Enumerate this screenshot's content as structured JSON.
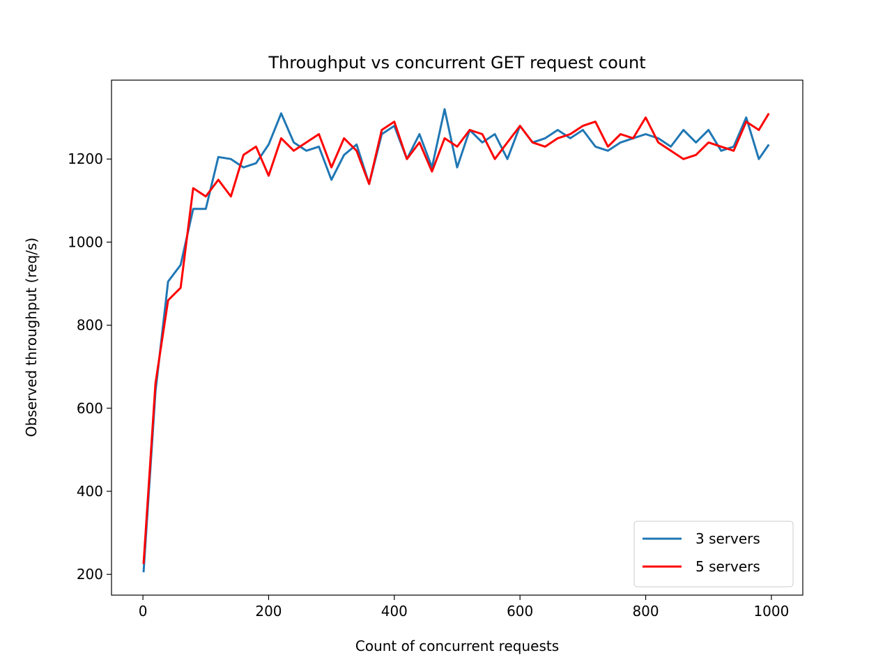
{
  "chart_data": {
    "type": "line",
    "title": "Throughput vs concurrent GET request count",
    "xlabel": "Count of concurrent requests",
    "ylabel": "Observed throughput (req/s)",
    "xlim": [
      -50,
      1050
    ],
    "ylim": [
      150,
      1390
    ],
    "xticks": [
      0,
      200,
      400,
      600,
      800,
      1000
    ],
    "yticks": [
      200,
      400,
      600,
      800,
      1000,
      1200
    ],
    "legend_position": "lower right",
    "grid": false,
    "series": [
      {
        "name": "3 servers",
        "color": "#1f77b4",
        "x": [
          1,
          20,
          40,
          60,
          80,
          100,
          120,
          140,
          160,
          180,
          200,
          220,
          240,
          260,
          280,
          300,
          320,
          340,
          360,
          380,
          400,
          420,
          440,
          460,
          480,
          500,
          520,
          540,
          560,
          580,
          600,
          620,
          640,
          660,
          680,
          700,
          720,
          740,
          760,
          780,
          800,
          820,
          840,
          860,
          880,
          900,
          920,
          940,
          960,
          980,
          996
        ],
        "y": [
          205,
          640,
          905,
          945,
          1080,
          1080,
          1205,
          1200,
          1180,
          1190,
          1235,
          1310,
          1240,
          1220,
          1230,
          1150,
          1210,
          1235,
          1140,
          1260,
          1280,
          1200,
          1260,
          1180,
          1320,
          1180,
          1270,
          1240,
          1260,
          1200,
          1280,
          1240,
          1250,
          1270,
          1250,
          1270,
          1230,
          1220,
          1240,
          1250,
          1260,
          1250,
          1230,
          1270,
          1240,
          1270,
          1220,
          1230,
          1300,
          1200,
          1235
        ]
      },
      {
        "name": "5 servers",
        "color": "#ff0000",
        "x": [
          1,
          20,
          40,
          60,
          80,
          100,
          120,
          140,
          160,
          180,
          200,
          220,
          240,
          260,
          280,
          300,
          320,
          340,
          360,
          380,
          400,
          420,
          440,
          460,
          480,
          500,
          520,
          540,
          560,
          580,
          600,
          620,
          640,
          660,
          680,
          700,
          720,
          740,
          760,
          780,
          800,
          820,
          840,
          860,
          880,
          900,
          920,
          940,
          960,
          980,
          996
        ],
        "y": [
          225,
          660,
          860,
          890,
          1130,
          1110,
          1150,
          1110,
          1210,
          1230,
          1160,
          1250,
          1220,
          1240,
          1260,
          1180,
          1250,
          1220,
          1140,
          1270,
          1290,
          1200,
          1240,
          1170,
          1250,
          1230,
          1270,
          1260,
          1200,
          1240,
          1280,
          1240,
          1230,
          1250,
          1260,
          1280,
          1290,
          1230,
          1260,
          1250,
          1300,
          1240,
          1220,
          1200,
          1210,
          1240,
          1230,
          1220,
          1290,
          1270,
          1310
        ]
      }
    ]
  }
}
